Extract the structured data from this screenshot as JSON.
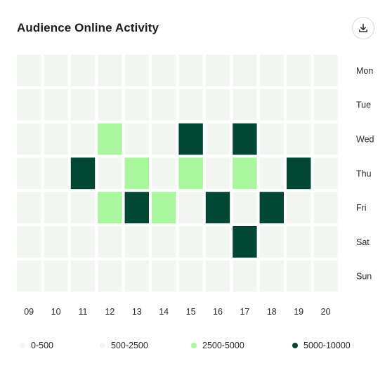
{
  "header": {
    "title": "Audience Online Activity",
    "download_icon": "download-icon"
  },
  "colors": {
    "empty": "#f3f5f2",
    "low": "#f3f5f2",
    "medium": "#a8f79c",
    "high": "#004733"
  },
  "chart_data": {
    "type": "heatmap",
    "title": "Audience Online Activity",
    "x": [
      "09",
      "10",
      "11",
      "12",
      "13",
      "14",
      "15",
      "16",
      "17",
      "18",
      "19",
      "20"
    ],
    "y": [
      "Mon",
      "Tue",
      "Wed",
      "Thu",
      "Fri",
      "Sat",
      "Sun"
    ],
    "legend": [
      {
        "label": "0-500",
        "level": 0,
        "color": "#f3f5f2"
      },
      {
        "label": "500-2500",
        "level": 1,
        "color": "#f3f5f2"
      },
      {
        "label": "2500-5000",
        "level": 2,
        "color": "#a8f79c"
      },
      {
        "label": "5000-10000",
        "level": 3,
        "color": "#004733"
      }
    ],
    "levels": [
      [
        0,
        0,
        0,
        0,
        0,
        0,
        0,
        0,
        0,
        0,
        0,
        0
      ],
      [
        0,
        0,
        0,
        0,
        0,
        0,
        0,
        0,
        0,
        0,
        0,
        0
      ],
      [
        0,
        0,
        0,
        2,
        0,
        0,
        3,
        0,
        3,
        0,
        0,
        0
      ],
      [
        0,
        0,
        3,
        0,
        2,
        0,
        2,
        0,
        2,
        0,
        3,
        0
      ],
      [
        0,
        0,
        0,
        2,
        3,
        2,
        0,
        3,
        0,
        3,
        0,
        0
      ],
      [
        0,
        0,
        0,
        0,
        0,
        0,
        0,
        0,
        3,
        0,
        0,
        0
      ],
      [
        0,
        0,
        0,
        0,
        0,
        0,
        0,
        0,
        0,
        0,
        0,
        0
      ]
    ],
    "legend_position": "bottom",
    "grid": false
  }
}
